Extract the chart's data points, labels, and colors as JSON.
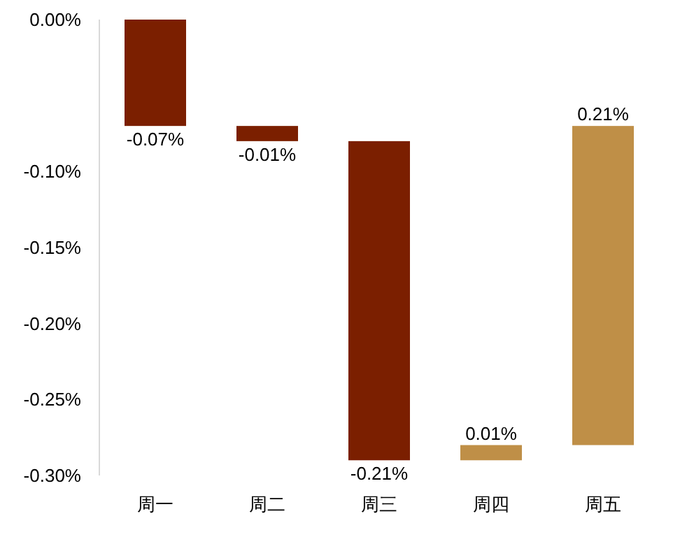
{
  "chart_data": {
    "type": "bar",
    "categories": [
      "周一",
      "周二",
      "周三",
      "周四",
      "周五"
    ],
    "values": [
      -0.07,
      -0.01,
      -0.21,
      0.01,
      0.21
    ],
    "base": [
      0,
      -0.07,
      -0.08,
      -0.29,
      -0.28
    ],
    "colors": [
      "#7b1f00",
      "#7b1f00",
      "#7b1f00",
      "#bf8f47",
      "#bf8f47"
    ],
    "value_labels": [
      "-0.07%",
      "-0.01%",
      "-0.21%",
      "0.01%",
      "0.21%"
    ],
    "ylim": [
      -0.3,
      0
    ],
    "yticks": [
      {
        "value": 0,
        "label": "0.00%"
      },
      {
        "value": -0.1,
        "label": "-0.10%"
      },
      {
        "value": -0.15,
        "label": "-0.15%"
      },
      {
        "value": -0.2,
        "label": "-0.20%"
      },
      {
        "value": -0.25,
        "label": "-0.25%"
      },
      {
        "value": -0.3,
        "label": "-0.30%"
      }
    ],
    "grid": false
  }
}
